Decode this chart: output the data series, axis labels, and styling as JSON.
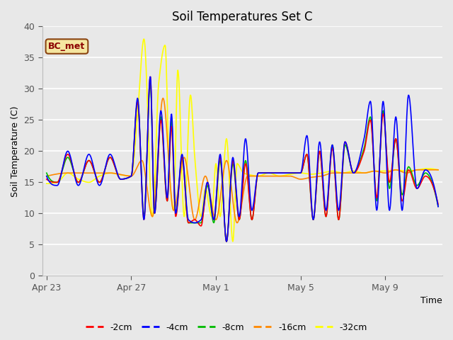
{
  "title": "Soil Temperatures Set C",
  "xlabel": "Time",
  "ylabel": "Soil Temperature (C)",
  "ylim": [
    0,
    40
  ],
  "yticks": [
    0,
    5,
    10,
    15,
    20,
    25,
    30,
    35,
    40
  ],
  "annotation": "BC_met",
  "bg_color": "#e8e8e8",
  "series_colors": {
    "-2cm": "#ff0000",
    "-4cm": "#0000ff",
    "-8cm": "#00bb00",
    "-16cm": "#ff8800",
    "-32cm": "#ffff00"
  },
  "legend_labels": [
    "-2cm",
    "-4cm",
    "-8cm",
    "-16cm",
    "-32cm"
  ],
  "x_tick_labels": [
    "Apr 23",
    "Apr 27",
    "May 1",
    "May 5",
    "May 9"
  ],
  "x_tick_positions": [
    0,
    4,
    8,
    12,
    16
  ]
}
